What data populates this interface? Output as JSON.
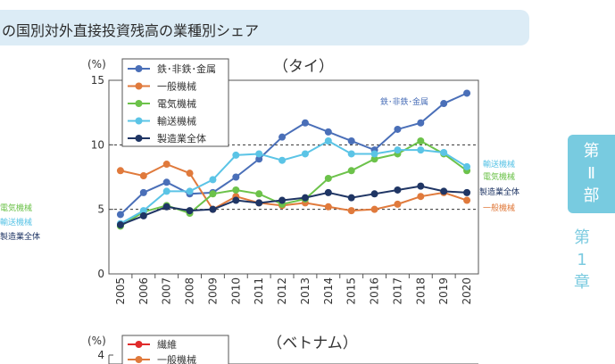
{
  "header": {
    "title": "の国別対外直接投資残高の業種別シェア"
  },
  "side_tab": {
    "part": "第\nⅡ\n部",
    "chapter": "第\n1\n章"
  },
  "left_partial": {
    "labels": [
      {
        "text": "電気機械",
        "color": "#6cc24a"
      },
      {
        "text": "輸送機械",
        "color": "#5bc4e6"
      },
      {
        "text": "製造業全体",
        "color": "#1f3564"
      }
    ]
  },
  "chart_data": [
    {
      "type": "line",
      "title": "（タイ）",
      "ylabel": "(%)",
      "ylim": [
        0,
        15
      ],
      "yticks": [
        0,
        5,
        10,
        15
      ],
      "x": [
        "2005",
        "2006",
        "2007",
        "2008",
        "2009",
        "2010",
        "2011",
        "2012",
        "2013",
        "2014",
        "2015",
        "2016",
        "2017",
        "2018",
        "2019",
        "2020"
      ],
      "grid": "dashed at 5 and 10",
      "legend": "top-left",
      "series": [
        {
          "name": "鉄･非鉄･金属",
          "color": "#4a6fb8",
          "end_label": "鉄･非鉄･金属",
          "values": [
            4.6,
            6.3,
            7.1,
            6.2,
            6.3,
            7.5,
            8.9,
            10.6,
            11.7,
            11.0,
            10.3,
            9.6,
            11.2,
            11.7,
            13.2,
            14.0
          ]
        },
        {
          "name": "一般機械",
          "color": "#e07a3c",
          "end_label": "一般機械",
          "values": [
            8.0,
            7.6,
            8.5,
            7.8,
            5.0,
            6.0,
            5.5,
            5.3,
            5.5,
            5.2,
            4.9,
            5.0,
            5.4,
            6.0,
            6.3,
            5.7
          ]
        },
        {
          "name": "電気機械",
          "color": "#6cc24a",
          "end_label": "電気機械",
          "values": [
            3.7,
            4.8,
            5.3,
            4.7,
            6.2,
            6.5,
            6.2,
            5.4,
            5.8,
            7.4,
            8.0,
            8.9,
            9.3,
            10.3,
            9.3,
            8.0
          ]
        },
        {
          "name": "輸送機械",
          "color": "#5bc4e6",
          "end_label": "輸送機械",
          "values": [
            3.9,
            4.9,
            6.4,
            6.4,
            7.3,
            9.2,
            9.3,
            8.8,
            9.3,
            10.3,
            9.3,
            9.3,
            9.6,
            9.6,
            9.4,
            8.3
          ]
        },
        {
          "name": "製造業全体",
          "color": "#1f3564",
          "end_label": "製造業全体",
          "values": [
            3.8,
            4.5,
            5.2,
            4.9,
            5.0,
            5.7,
            5.5,
            5.7,
            5.9,
            6.3,
            5.9,
            6.2,
            6.5,
            6.8,
            6.4,
            6.3
          ]
        }
      ]
    },
    {
      "type": "line",
      "title": "（ベトナム）",
      "ylabel": "(%)",
      "yticks": [
        4
      ],
      "legend": "top-left",
      "series": [
        {
          "name": "繊維",
          "color": "#e02b2b"
        },
        {
          "name": "一般機械",
          "color": "#e07a3c"
        }
      ]
    }
  ]
}
